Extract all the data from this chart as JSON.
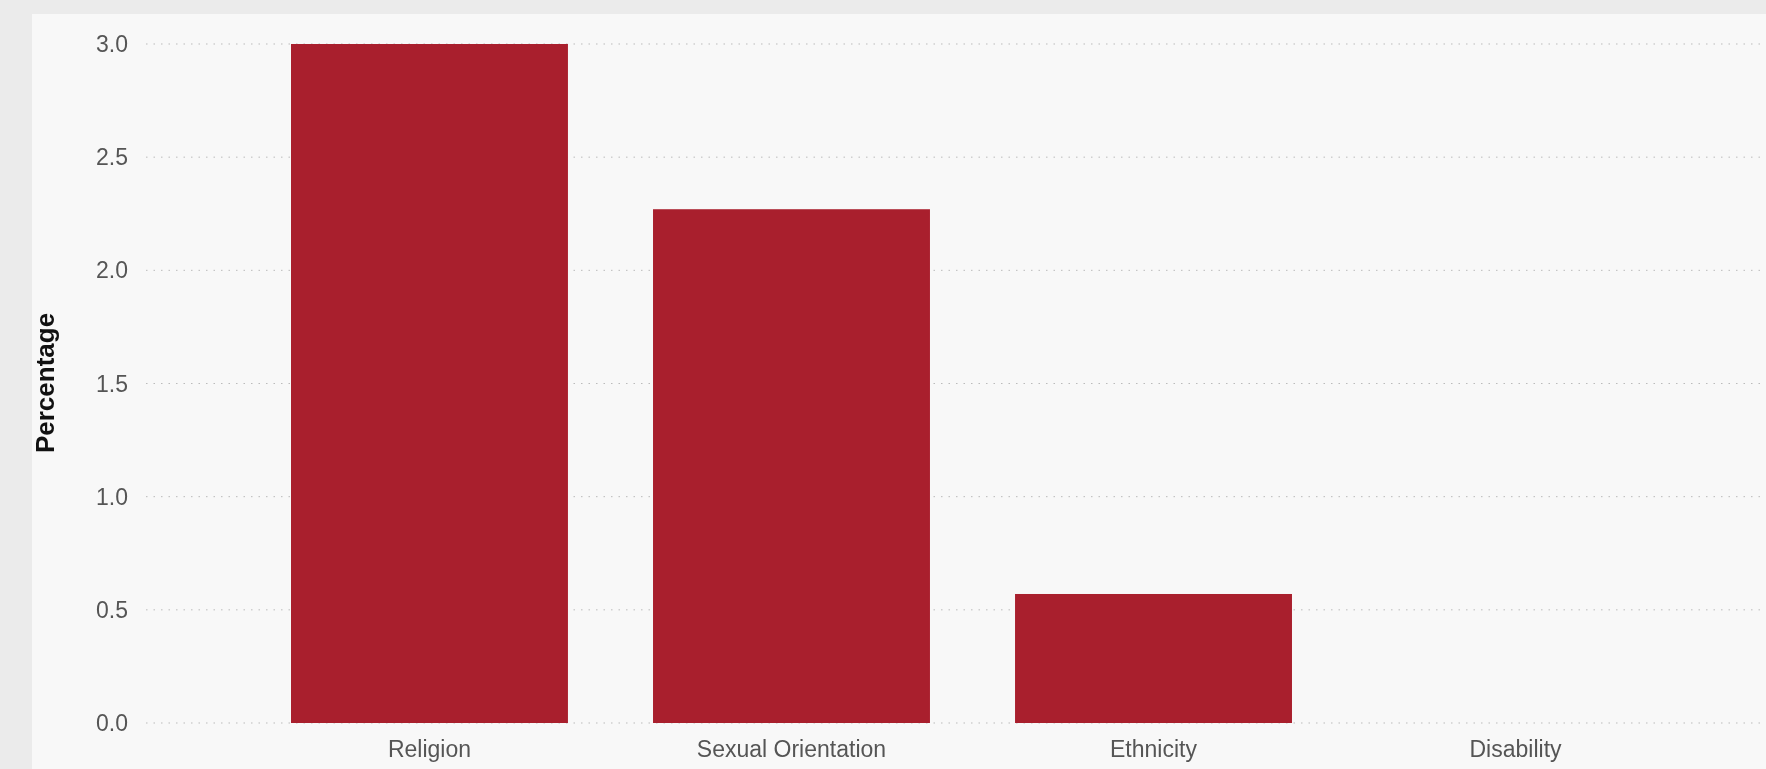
{
  "chart_data": {
    "type": "bar",
    "ylabel": "Percentage",
    "categories": [
      "Religion",
      "Sexual Orientation",
      "Ethnicity",
      "Disability"
    ],
    "values": [
      3.0,
      2.27,
      0.57,
      0
    ],
    "color": "#a91f2d",
    "ylim": [
      0,
      3.0
    ],
    "yticks": [
      {
        "value": 0,
        "label": "0.0"
      },
      {
        "value": 0.5,
        "label": "0.5"
      },
      {
        "value": 1,
        "label": "1.0"
      },
      {
        "value": 1.5,
        "label": "1.5"
      },
      {
        "value": 2,
        "label": "2.0"
      },
      {
        "value": 2.5,
        "label": "2.5"
      },
      {
        "value": 3,
        "label": "3.0"
      }
    ],
    "grid": "y"
  }
}
